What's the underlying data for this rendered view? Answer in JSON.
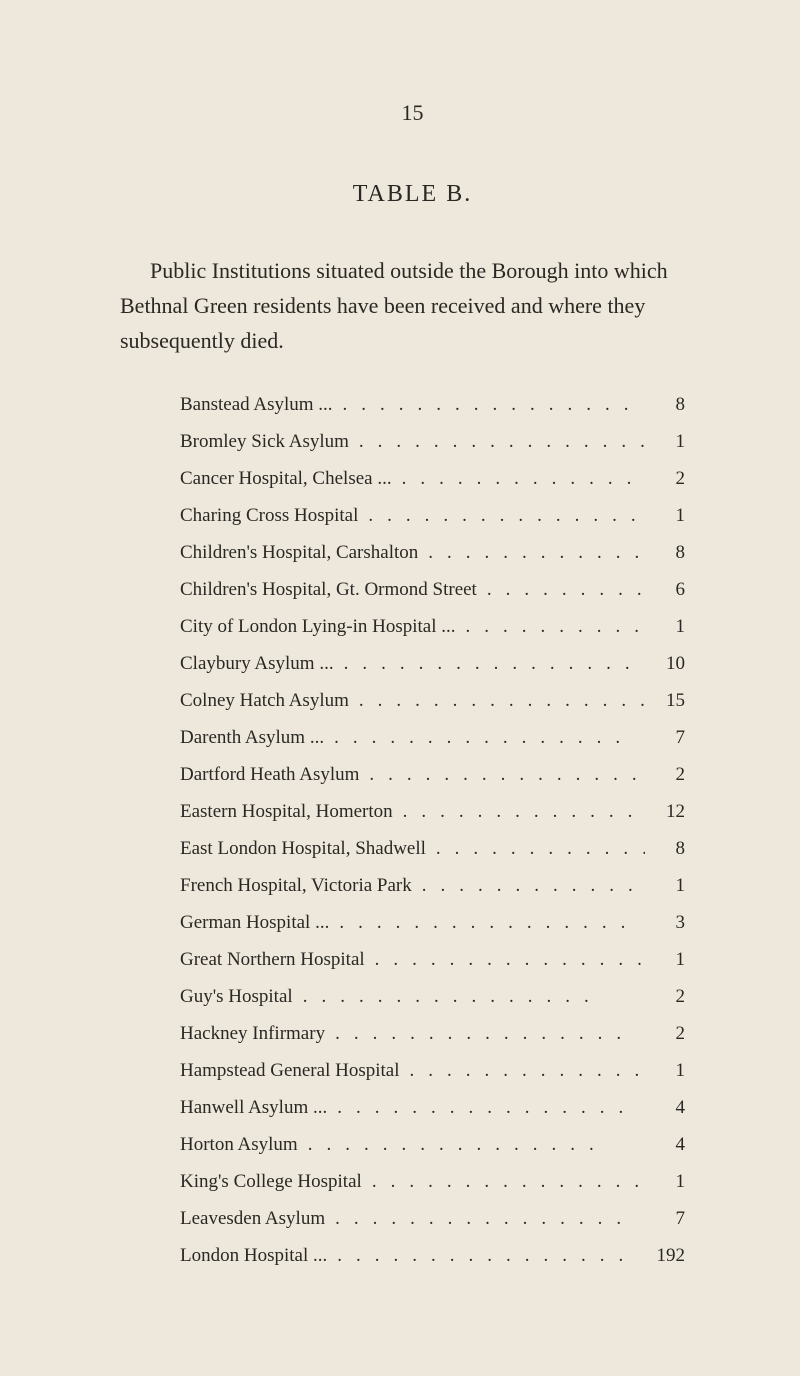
{
  "page_number": "15",
  "table_title": "TABLE  B.",
  "intro_text": "Public Institutions situated outside the Borough into which Bethnal Green residents have been received and where they subsequently died.",
  "entries": [
    {
      "name": "Banstead Asylum ...",
      "value": "8"
    },
    {
      "name": "Bromley Sick Asylum",
      "value": "1"
    },
    {
      "name": "Cancer Hospital, Chelsea  ...",
      "value": "2"
    },
    {
      "name": "Charing Cross Hospital",
      "value": "1"
    },
    {
      "name": "Children's Hospital, Carshalton",
      "value": "8"
    },
    {
      "name": "Children's Hospital, Gt. Ormond Street",
      "value": "6"
    },
    {
      "name": "City of London Lying-in Hospital  ...",
      "value": "1"
    },
    {
      "name": "Claybury Asylum ...",
      "value": "10"
    },
    {
      "name": "Colney Hatch Asylum",
      "value": "15"
    },
    {
      "name": "Darenth Asylum  ...",
      "value": "7"
    },
    {
      "name": "Dartford Heath Asylum",
      "value": "2"
    },
    {
      "name": "Eastern Hospital, Homerton",
      "value": "12"
    },
    {
      "name": "East London Hospital, Shadwell",
      "value": "8"
    },
    {
      "name": "French Hospital, Victoria Park",
      "value": "1"
    },
    {
      "name": "German Hospital ...",
      "value": "3"
    },
    {
      "name": "Great Northern Hospital",
      "value": "1"
    },
    {
      "name": "Guy's Hospital",
      "value": "2"
    },
    {
      "name": "Hackney Infirmary",
      "value": "2"
    },
    {
      "name": "Hampstead General Hospital",
      "value": "1"
    },
    {
      "name": "Hanwell Asylum ...",
      "value": "4"
    },
    {
      "name": "Horton Asylum",
      "value": "4"
    },
    {
      "name": "King's College Hospital",
      "value": "1"
    },
    {
      "name": "Leavesden Asylum",
      "value": "7"
    },
    {
      "name": "London Hospital ...",
      "value": "192"
    }
  ],
  "colors": {
    "background": "#ede8db",
    "text": "#2a2824"
  },
  "typography": {
    "font_family": "Georgia, Times New Roman, serif",
    "page_number_size": 22,
    "title_size": 24,
    "intro_size": 22,
    "entry_size": 19
  }
}
